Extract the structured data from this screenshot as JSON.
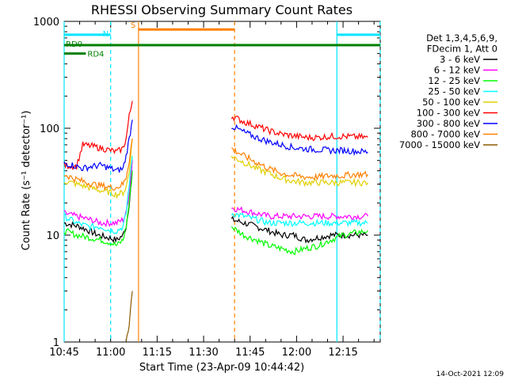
{
  "chart_data": {
    "type": "line",
    "title": "RHESSI Observing Summary Count Rates",
    "xlabel": "Start Time (23-Apr-09 10:44:42)",
    "ylabel": "Count Rate (s⁻¹ detector⁻¹)",
    "yscale": "log",
    "ylim": [
      1,
      1000
    ],
    "xlim_minutes": [
      0,
      102
    ],
    "x_ticks": [
      {
        "label": "10:45",
        "minute": 0
      },
      {
        "label": "11:00",
        "minute": 15
      },
      {
        "label": "11:15",
        "minute": 30
      },
      {
        "label": "11:30",
        "minute": 45
      },
      {
        "label": "11:45",
        "minute": 60
      },
      {
        "label": "12:00",
        "minute": 75
      },
      {
        "label": "12:15",
        "minute": 90
      }
    ],
    "y_ticks": [
      {
        "label": "1",
        "value": 1
      },
      {
        "label": "10",
        "value": 10
      },
      {
        "label": "100",
        "value": 100
      },
      {
        "label": "1000",
        "value": 1000
      }
    ],
    "legend_header": [
      "Det 1,3,4,5,6,9,",
      "FDecim 1, Att 0"
    ],
    "series": [
      {
        "name": "3 - 6 keV",
        "color": "#000000",
        "gap_x": [
          22,
          54
        ],
        "points": [
          [
            0,
            13
          ],
          [
            5,
            12
          ],
          [
            8,
            11
          ],
          [
            11,
            10
          ],
          [
            14,
            9.5
          ],
          [
            17,
            9
          ],
          [
            19,
            10
          ],
          [
            20,
            12
          ],
          [
            21,
            20
          ],
          [
            22,
            40
          ]
        ],
        "points2": [
          [
            54,
            14
          ],
          [
            58,
            13
          ],
          [
            62,
            12
          ],
          [
            66,
            11
          ],
          [
            70,
            10
          ],
          [
            74,
            10
          ],
          [
            78,
            9
          ],
          [
            82,
            9.5
          ],
          [
            86,
            10
          ],
          [
            90,
            10
          ],
          [
            94,
            10
          ],
          [
            98,
            10
          ]
        ]
      },
      {
        "name": "6 - 12 keV",
        "color": "#ff00ff",
        "gap_x": [
          22,
          54
        ],
        "points": [
          [
            0,
            16
          ],
          [
            4,
            15
          ],
          [
            8,
            14
          ],
          [
            12,
            13
          ],
          [
            15,
            13
          ],
          [
            17,
            13
          ],
          [
            19,
            14
          ],
          [
            20,
            16
          ],
          [
            21,
            25
          ],
          [
            22,
            50
          ]
        ],
        "points2": [
          [
            54,
            18
          ],
          [
            58,
            17
          ],
          [
            62,
            16
          ],
          [
            66,
            15
          ],
          [
            70,
            15
          ],
          [
            74,
            15
          ],
          [
            78,
            15
          ],
          [
            82,
            15
          ],
          [
            86,
            15
          ],
          [
            90,
            15
          ],
          [
            94,
            15
          ],
          [
            98,
            15
          ]
        ]
      },
      {
        "name": "12 - 25 keV",
        "color": "#00ff00",
        "gap_x": [
          22,
          54
        ],
        "points": [
          [
            0,
            11
          ],
          [
            4,
            10
          ],
          [
            8,
            9.5
          ],
          [
            12,
            9
          ],
          [
            15,
            8.5
          ],
          [
            17,
            8
          ],
          [
            19,
            9
          ],
          [
            20,
            12
          ],
          [
            21,
            20
          ],
          [
            22,
            40
          ]
        ],
        "points2": [
          [
            54,
            12
          ],
          [
            58,
            10
          ],
          [
            62,
            9
          ],
          [
            66,
            8
          ],
          [
            70,
            7.5
          ],
          [
            74,
            7
          ],
          [
            78,
            7.5
          ],
          [
            82,
            8
          ],
          [
            86,
            9
          ],
          [
            90,
            10
          ],
          [
            94,
            10.5
          ],
          [
            98,
            11
          ]
        ]
      },
      {
        "name": "25 - 50 keV",
        "color": "#00ffff",
        "gap_x": [
          22,
          54
        ],
        "points": [
          [
            0,
            15
          ],
          [
            4,
            13
          ],
          [
            8,
            12
          ],
          [
            12,
            12
          ],
          [
            15,
            11
          ],
          [
            17,
            11
          ],
          [
            19,
            12
          ],
          [
            20,
            16
          ],
          [
            21,
            30
          ],
          [
            22,
            55
          ]
        ],
        "points2": [
          [
            54,
            16
          ],
          [
            58,
            15
          ],
          [
            62,
            14
          ],
          [
            66,
            13
          ],
          [
            70,
            13
          ],
          [
            74,
            13
          ],
          [
            78,
            13
          ],
          [
            82,
            13
          ],
          [
            86,
            13
          ],
          [
            90,
            13
          ],
          [
            94,
            13
          ],
          [
            98,
            13
          ]
        ]
      },
      {
        "name": "50 - 100 keV",
        "color": "#e0d000",
        "gap_x": [
          22,
          54
        ],
        "points": [
          [
            0,
            32
          ],
          [
            4,
            30
          ],
          [
            8,
            28
          ],
          [
            12,
            26
          ],
          [
            15,
            25
          ],
          [
            17,
            24
          ],
          [
            19,
            25
          ],
          [
            20,
            28
          ],
          [
            21,
            40
          ],
          [
            22,
            80
          ]
        ],
        "points2": [
          [
            54,
            55
          ],
          [
            58,
            48
          ],
          [
            62,
            42
          ],
          [
            66,
            38
          ],
          [
            70,
            34
          ],
          [
            74,
            32
          ],
          [
            78,
            31
          ],
          [
            82,
            31
          ],
          [
            86,
            31
          ],
          [
            90,
            31
          ],
          [
            94,
            31
          ],
          [
            98,
            31
          ]
        ]
      },
      {
        "name": "100 - 300 keV",
        "color": "#ff0000",
        "gap_x": [
          22,
          54
        ],
        "points": [
          [
            0,
            45
          ],
          [
            4,
            44
          ],
          [
            6,
            70
          ],
          [
            9,
            68
          ],
          [
            12,
            65
          ],
          [
            15,
            62
          ],
          [
            17,
            60
          ],
          [
            19,
            65
          ],
          [
            20,
            80
          ],
          [
            21,
            130
          ],
          [
            22,
            180
          ]
        ],
        "points2": [
          [
            54,
            130
          ],
          [
            58,
            115
          ],
          [
            62,
            105
          ],
          [
            66,
            95
          ],
          [
            70,
            88
          ],
          [
            74,
            85
          ],
          [
            78,
            82
          ],
          [
            82,
            82
          ],
          [
            86,
            84
          ],
          [
            90,
            84
          ],
          [
            94,
            83
          ],
          [
            98,
            82
          ]
        ]
      },
      {
        "name": "300 - 800 keV",
        "color": "#0000ff",
        "gap_x": [
          22,
          54
        ],
        "points": [
          [
            0,
            47
          ],
          [
            3,
            45
          ],
          [
            6,
            42
          ],
          [
            9,
            44
          ],
          [
            12,
            45
          ],
          [
            15,
            42
          ],
          [
            17,
            40
          ],
          [
            19,
            42
          ],
          [
            20,
            55
          ],
          [
            21,
            80
          ],
          [
            22,
            120
          ]
        ],
        "points2": [
          [
            54,
            105
          ],
          [
            58,
            92
          ],
          [
            62,
            82
          ],
          [
            66,
            75
          ],
          [
            70,
            70
          ],
          [
            74,
            66
          ],
          [
            78,
            64
          ],
          [
            82,
            63
          ],
          [
            86,
            62
          ],
          [
            90,
            62
          ],
          [
            94,
            61
          ],
          [
            98,
            60
          ]
        ]
      },
      {
        "name": "800 - 7000 keV",
        "color": "#ff8000",
        "gap_x": [
          22,
          54
        ],
        "points": [
          [
            0,
            37
          ],
          [
            3,
            34
          ],
          [
            6,
            32
          ],
          [
            9,
            30
          ],
          [
            12,
            29
          ],
          [
            15,
            28
          ],
          [
            17,
            28
          ],
          [
            19,
            30
          ],
          [
            20,
            35
          ],
          [
            21,
            50
          ],
          [
            22,
            80
          ]
        ],
        "points2": [
          [
            54,
            65
          ],
          [
            58,
            55
          ],
          [
            62,
            48
          ],
          [
            66,
            42
          ],
          [
            70,
            38
          ],
          [
            74,
            36
          ],
          [
            78,
            35
          ],
          [
            82,
            35
          ],
          [
            86,
            36
          ],
          [
            90,
            36
          ],
          [
            94,
            37
          ],
          [
            98,
            37
          ]
        ]
      },
      {
        "name": "7000 - 15000 keV",
        "color": "#8b5a00",
        "gap_x": [
          22,
          54
        ],
        "points": [
          [
            20,
            1
          ],
          [
            21,
            1.5
          ],
          [
            22,
            3
          ]
        ],
        "points2": []
      }
    ],
    "flags": [
      {
        "label": "RD0",
        "color": "#008000",
        "value": 600,
        "x_start": 0,
        "x_end": 102
      },
      {
        "label": "RD4",
        "color": "#008000",
        "value": 500,
        "x_start": 0,
        "x_end": 7
      },
      {
        "label": "N",
        "color": "#00e5ff",
        "value": 750,
        "x_start": 0,
        "x_end": 15
      },
      {
        "label": "",
        "color": "#00e5ff",
        "value": 750,
        "x_start": 88,
        "x_end": 102
      },
      {
        "label": "S",
        "color": "#ff8000",
        "value": 840,
        "x_start": 24,
        "x_end": 55
      }
    ],
    "vlines": [
      {
        "minute": 15,
        "color": "#00e5ff",
        "dashed": true
      },
      {
        "minute": 24,
        "color": "#ff8000",
        "dashed": false
      },
      {
        "minute": 55,
        "color": "#ff8000",
        "dashed": true
      },
      {
        "minute": 88,
        "color": "#00e5ff",
        "dashed": false
      },
      {
        "minute": 102,
        "color": "#00e5ff",
        "dashed": true
      },
      {
        "minute": 0,
        "color": "#00e5ff",
        "dashed": false
      }
    ],
    "footer_timestamp": "14-Oct-2021 12:09"
  }
}
